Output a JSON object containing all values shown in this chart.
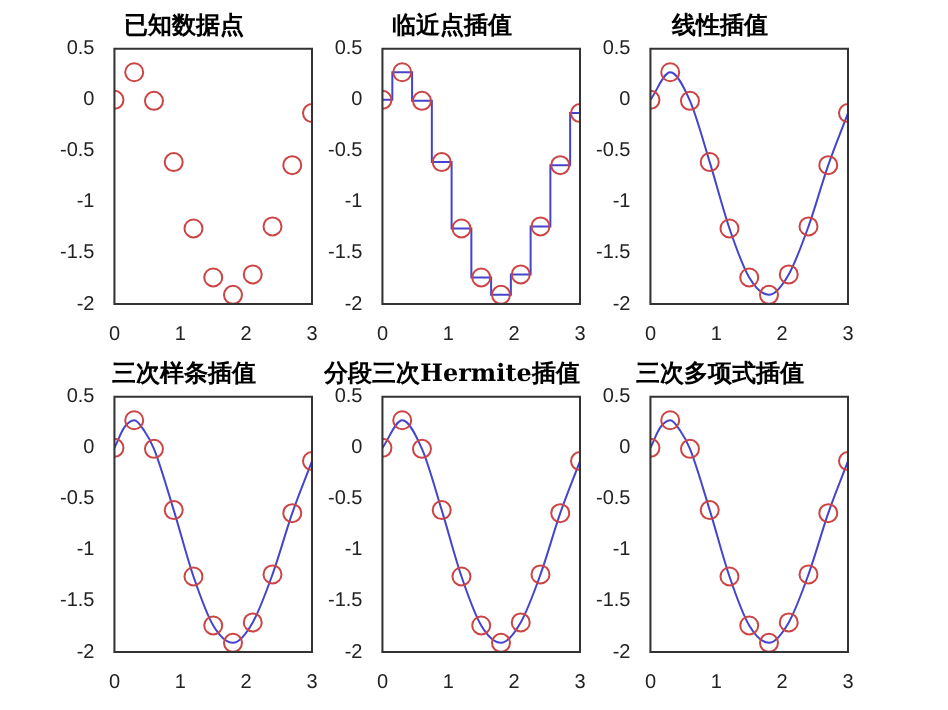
{
  "chart_data": [
    {
      "type": "scatter",
      "title": "已知数据点",
      "xlim": [
        0,
        3
      ],
      "xticks": [
        0,
        1,
        2,
        3
      ],
      "ylim": [
        -2,
        0.5
      ],
      "yticks": [
        -2,
        -1.5,
        -1,
        -0.5,
        0,
        0.5
      ],
      "grid": false,
      "legend": false,
      "series": [
        {
          "marker": "circle",
          "color": "#cc4444",
          "x": [
            0,
            0.3,
            0.6,
            0.9,
            1.2,
            1.5,
            1.8,
            2.1,
            2.4,
            2.7,
            3.0
          ],
          "values": [
            0,
            0.27,
            -0.01,
            -0.61,
            -1.26,
            -1.74,
            -1.91,
            -1.71,
            -1.24,
            -0.64,
            -0.13
          ]
        }
      ]
    },
    {
      "type": "scatter",
      "title": "临近点插值",
      "xlim": [
        0,
        3
      ],
      "xticks": [
        0,
        1,
        2,
        3
      ],
      "ylim": [
        -2,
        0.5
      ],
      "yticks": [
        -2,
        -1.5,
        -1,
        -0.5,
        0,
        0.5
      ],
      "grid": false,
      "legend": false,
      "series": [
        {
          "marker": "circle",
          "color": "#cc4444",
          "x": [
            0,
            0.3,
            0.6,
            0.9,
            1.2,
            1.5,
            1.8,
            2.1,
            2.4,
            2.7,
            3.0
          ],
          "values": [
            0,
            0.27,
            -0.01,
            -0.61,
            -1.26,
            -1.74,
            -1.91,
            -1.71,
            -1.24,
            -0.64,
            -0.13
          ]
        },
        {
          "type": "step",
          "marker": "none",
          "color": "#4444cc",
          "x": [
            0,
            0.3,
            0.6,
            0.9,
            1.2,
            1.5,
            1.8,
            2.1,
            2.4,
            2.7,
            3.0
          ],
          "values": [
            0,
            0.27,
            -0.01,
            -0.61,
            -1.26,
            -1.74,
            -1.91,
            -1.71,
            -1.24,
            -0.64,
            -0.13
          ]
        }
      ]
    },
    {
      "type": "scatter",
      "title": "线性插值",
      "xlim": [
        0,
        3
      ],
      "xticks": [
        0,
        1,
        2,
        3
      ],
      "ylim": [
        -2,
        0.5
      ],
      "yticks": [
        -2,
        -1.5,
        -1,
        -0.5,
        0,
        0.5
      ],
      "grid": false,
      "legend": false,
      "series": [
        {
          "marker": "circle",
          "color": "#cc4444",
          "x": [
            0,
            0.3,
            0.6,
            0.9,
            1.2,
            1.5,
            1.8,
            2.1,
            2.4,
            2.7,
            3.0
          ],
          "values": [
            0,
            0.27,
            -0.01,
            -0.61,
            -1.26,
            -1.74,
            -1.91,
            -1.71,
            -1.24,
            -0.64,
            -0.13
          ]
        },
        {
          "type": "line",
          "marker": "none",
          "color": "#4444cc",
          "x": [
            0,
            0.3,
            0.6,
            0.9,
            1.2,
            1.5,
            1.8,
            2.1,
            2.4,
            2.7,
            3.0
          ],
          "values": [
            0,
            0.27,
            -0.01,
            -0.61,
            -1.26,
            -1.74,
            -1.91,
            -1.71,
            -1.24,
            -0.64,
            -0.13
          ]
        }
      ]
    },
    {
      "type": "scatter",
      "title": "三次样条插值",
      "xlim": [
        0,
        3
      ],
      "xticks": [
        0,
        1,
        2,
        3
      ],
      "ylim": [
        -2,
        0.5
      ],
      "yticks": [
        -2,
        -1.5,
        -1,
        -0.5,
        0,
        0.5
      ],
      "grid": false,
      "legend": false,
      "series": [
        {
          "marker": "circle",
          "color": "#cc4444",
          "x": [
            0,
            0.3,
            0.6,
            0.9,
            1.2,
            1.5,
            1.8,
            2.1,
            2.4,
            2.7,
            3.0
          ],
          "values": [
            0,
            0.27,
            -0.01,
            -0.61,
            -1.26,
            -1.74,
            -1.91,
            -1.71,
            -1.24,
            -0.64,
            -0.13
          ]
        },
        {
          "type": "line",
          "marker": "none",
          "color": "#4444cc",
          "x": [
            0,
            0.15,
            0.3,
            0.45,
            0.6,
            0.9,
            1.2,
            1.5,
            1.8,
            2.1,
            2.4,
            2.7,
            3.0
          ],
          "values": [
            0,
            0.2,
            0.27,
            0.17,
            -0.01,
            -0.61,
            -1.26,
            -1.74,
            -1.91,
            -1.71,
            -1.24,
            -0.64,
            -0.13
          ]
        }
      ]
    },
    {
      "type": "scatter",
      "title": "分段三次Hermite插值",
      "xlim": [
        0,
        3
      ],
      "xticks": [
        0,
        1,
        2,
        3
      ],
      "ylim": [
        -2,
        0.5
      ],
      "yticks": [
        -2,
        -1.5,
        -1,
        -0.5,
        0,
        0.5
      ],
      "grid": false,
      "legend": false,
      "series": [
        {
          "marker": "circle",
          "color": "#cc4444",
          "x": [
            0,
            0.3,
            0.6,
            0.9,
            1.2,
            1.5,
            1.8,
            2.1,
            2.4,
            2.7,
            3.0
          ],
          "values": [
            0,
            0.27,
            -0.01,
            -0.61,
            -1.26,
            -1.74,
            -1.91,
            -1.71,
            -1.24,
            -0.64,
            -0.13
          ]
        },
        {
          "type": "line",
          "marker": "none",
          "color": "#4444cc",
          "x": [
            0,
            0.3,
            0.6,
            0.9,
            1.2,
            1.5,
            1.8,
            2.1,
            2.4,
            2.7,
            3.0
          ],
          "values": [
            0,
            0.27,
            -0.01,
            -0.61,
            -1.26,
            -1.74,
            -1.91,
            -1.71,
            -1.24,
            -0.64,
            -0.13
          ]
        }
      ]
    },
    {
      "type": "scatter",
      "title": "三次多项式插值",
      "xlim": [
        0,
        3
      ],
      "xticks": [
        0,
        1,
        2,
        3
      ],
      "ylim": [
        -2,
        0.5
      ],
      "yticks": [
        -2,
        -1.5,
        -1,
        -0.5,
        0,
        0.5
      ],
      "grid": false,
      "legend": false,
      "series": [
        {
          "marker": "circle",
          "color": "#cc4444",
          "x": [
            0,
            0.3,
            0.6,
            0.9,
            1.2,
            1.5,
            1.8,
            2.1,
            2.4,
            2.7,
            3.0
          ],
          "values": [
            0,
            0.27,
            -0.01,
            -0.61,
            -1.26,
            -1.74,
            -1.91,
            -1.71,
            -1.24,
            -0.64,
            -0.13
          ]
        },
        {
          "type": "line",
          "marker": "none",
          "color": "#4444cc",
          "x": [
            0,
            0.15,
            0.3,
            0.45,
            0.6,
            0.9,
            1.2,
            1.5,
            1.8,
            2.1,
            2.4,
            2.7,
            3.0
          ],
          "values": [
            0,
            0.2,
            0.27,
            0.17,
            -0.01,
            -0.61,
            -1.26,
            -1.74,
            -1.91,
            -1.71,
            -1.24,
            -0.64,
            -0.13
          ]
        }
      ]
    }
  ]
}
